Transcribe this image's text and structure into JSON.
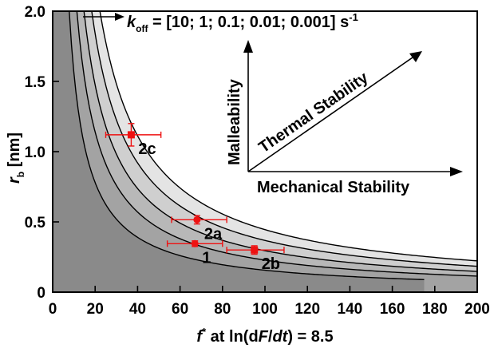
{
  "chart_data": {
    "type": "scatter",
    "title": "",
    "xlabel": {
      "main": "f",
      "sup": "*",
      "rest": " at ln(d",
      "italicF": "F",
      "slash": "/",
      "italicDt": "dt",
      "end": ") = 8.5"
    },
    "ylabel": {
      "main": "r",
      "sub": "b",
      "unit": " [nm]"
    },
    "xlim": [
      0,
      200
    ],
    "ylim": [
      0,
      2.0
    ],
    "x_ticks": [
      0,
      20,
      40,
      60,
      80,
      100,
      120,
      140,
      160,
      180,
      200
    ],
    "y_ticks": [
      "0",
      "0.5",
      "1.0",
      "1.5",
      "2.0"
    ],
    "y_tick_values": [
      0,
      0.5,
      1.0,
      1.5,
      2.0
    ],
    "koff_annotation": {
      "k": "k",
      "sub": "off",
      "text": " = [10; 1; 0.1; 0.01; 0.001] s",
      "sup": "-1"
    },
    "region_colors": [
      "#8a8a8a",
      "#a3a3a3",
      "#b8b8b8",
      "#cfcfcf",
      "#e4e4e4",
      "#ffffff"
    ],
    "curves": [
      {
        "name": "koff 10",
        "C": 15.6,
        "xmin": 7.8,
        "xmax": 175
      },
      {
        "name": "koff 1",
        "C": 22.8,
        "xmin": 11.4,
        "xmax": 200
      },
      {
        "name": "koff 0.1",
        "C": 29.5,
        "xmin": 14.75,
        "xmax": 200
      },
      {
        "name": "koff 0.01",
        "C": 36.8,
        "xmin": 18.4,
        "xmax": 200
      },
      {
        "name": "koff 0.001",
        "C": 44.5,
        "xmin": 22.25,
        "xmax": 200
      }
    ],
    "points": [
      {
        "label": "1",
        "x": 67,
        "y": 0.345,
        "xerr": [
          54,
          80
        ],
        "yerr": 0.02,
        "marker": "circle"
      },
      {
        "label": "2a",
        "x": 68,
        "y": 0.515,
        "xerr": [
          56,
          82
        ],
        "yerr": 0.03,
        "marker": "circle"
      },
      {
        "label": "2b",
        "x": 95,
        "y": 0.3,
        "xerr": [
          82,
          109
        ],
        "yerr": 0.03,
        "marker": "square"
      },
      {
        "label": "2c",
        "x": 37,
        "y": 1.12,
        "xerr": [
          25,
          51
        ],
        "yerr": 0.08,
        "marker": "square"
      }
    ],
    "point_color": "#ee1111",
    "inset": {
      "malleability": "Malleability",
      "thermal": "Thermal Stability",
      "mechanical": "Mechanical Stability"
    }
  }
}
